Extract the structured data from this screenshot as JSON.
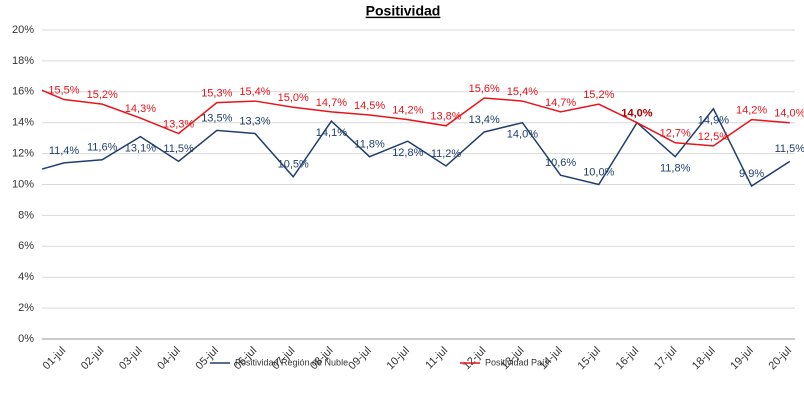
{
  "chart_data": {
    "type": "line",
    "title": "Positividad",
    "categories": [
      null,
      "01-jul",
      "02-jul",
      "03-jul",
      "04-jul",
      "05-jul",
      "06-jul",
      "07-jul",
      "08-jul",
      "09-jul",
      "10-jul",
      "11-jul",
      "12-jul",
      "13-jul",
      "14-jul",
      "15-jul",
      "16-jul",
      "17-jul",
      "18-jul",
      "19-jul",
      "20-jul"
    ],
    "series": [
      {
        "name": "Positividad Región de Ñuble",
        "color": "#1f3f6e",
        "values": [
          11.0,
          11.4,
          11.6,
          13.1,
          11.5,
          13.5,
          13.3,
          10.5,
          14.1,
          11.8,
          12.8,
          11.2,
          13.4,
          14.0,
          10.6,
          10.0,
          14.0,
          11.8,
          14.9,
          9.9,
          11.5
        ],
        "value_labels": [
          null,
          "11,4%",
          "11,6%",
          "13,1%",
          "11,5%",
          "13,5%",
          "13,3%",
          "10,5%",
          "14,1%",
          "11,8%",
          "12,8%",
          "11,2%",
          "13,4%",
          "14,0%",
          "10,6%",
          "10,0%",
          null,
          "11,8%",
          "14,9%",
          "9,9%",
          "11,5%"
        ]
      },
      {
        "name": "Positividad País",
        "color": "#e8141b",
        "values": [
          16.1,
          15.5,
          15.2,
          14.3,
          13.3,
          15.3,
          15.4,
          15.0,
          14.7,
          14.5,
          14.2,
          13.8,
          15.6,
          15.4,
          14.7,
          15.2,
          14.0,
          12.7,
          12.5,
          14.2,
          14.0
        ],
        "value_labels": [
          null,
          "15,5%",
          "15,2%",
          "14,3%",
          "13,3%",
          "15,3%",
          "15,4%",
          "15,0%",
          "14,7%",
          "14,5%",
          "14,2%",
          "13,8%",
          "15,6%",
          "15,4%",
          "14,7%",
          "15,2%",
          "14,0%",
          "12,7%",
          "12,5%",
          "14,2%",
          "14,0%"
        ]
      }
    ],
    "ylim": [
      0,
      20
    ],
    "yticks": [
      {
        "value": 0,
        "label": "0%"
      },
      {
        "value": 2,
        "label": "2%"
      },
      {
        "value": 4,
        "label": "4%"
      },
      {
        "value": 6,
        "label": "6%"
      },
      {
        "value": 8,
        "label": "8%"
      },
      {
        "value": 10,
        "label": "10%"
      },
      {
        "value": 12,
        "label": "12%"
      },
      {
        "value": 14,
        "label": "14%"
      },
      {
        "value": 16,
        "label": "16%"
      },
      {
        "value": 18,
        "label": "18%"
      },
      {
        "value": 20,
        "label": "20%"
      }
    ],
    "grid": true,
    "legend": "bottom"
  }
}
